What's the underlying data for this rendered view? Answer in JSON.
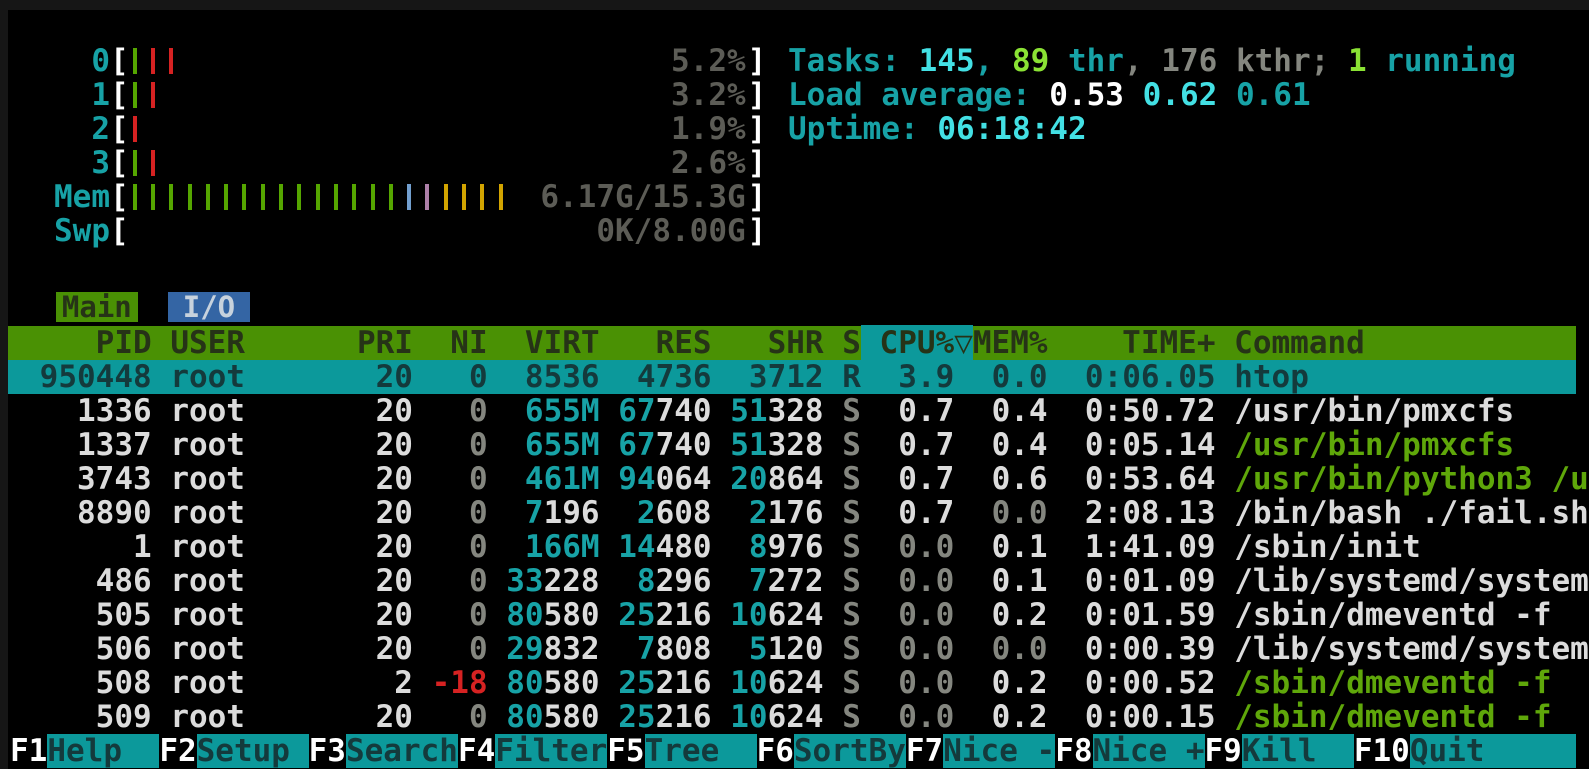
{
  "meters": {
    "cpus": [
      {
        "label": "0",
        "value": "5.2%",
        "ticks": [
          "green",
          "red",
          "red"
        ]
      },
      {
        "label": "1",
        "value": "3.2%",
        "ticks": [
          "green",
          "red"
        ]
      },
      {
        "label": "2",
        "value": "1.9%",
        "ticks": [
          "red"
        ]
      },
      {
        "label": "3",
        "value": "2.6%",
        "ticks": [
          "green",
          "red"
        ]
      }
    ],
    "mem": {
      "label": "Mem",
      "value": "6.17G/15.3G",
      "ticks": [
        "green",
        "green",
        "green",
        "green",
        "green",
        "green",
        "green",
        "green",
        "green",
        "green",
        "green",
        "green",
        "green",
        "green",
        "green",
        "blue",
        "purple",
        "yellow",
        "yellow",
        "yellow",
        "yellow"
      ]
    },
    "swp": {
      "label": "Swp",
      "value": "0K/8.00G",
      "ticks": []
    }
  },
  "info": {
    "tasks": [
      {
        "t": "Tasks: ",
        "c": "teal"
      },
      {
        "t": "145",
        "c": "cb"
      },
      {
        "t": ", ",
        "c": "teal"
      },
      {
        "t": "89",
        "c": "gb"
      },
      {
        "t": " thr",
        "c": "teal"
      },
      {
        "t": ", ",
        "c": "dim"
      },
      {
        "t": "176 kthr",
        "c": "dim"
      },
      {
        "t": "; ",
        "c": "dim"
      },
      {
        "t": "1",
        "c": "gb"
      },
      {
        "t": " running",
        "c": "teal"
      }
    ],
    "load": [
      {
        "t": "Load average: ",
        "c": "teal"
      },
      {
        "t": "0.53 ",
        "c": "wb"
      },
      {
        "t": "0.62 ",
        "c": "cb"
      },
      {
        "t": "0.61",
        "c": "teal"
      }
    ],
    "uptime": [
      {
        "t": "Uptime: ",
        "c": "teal"
      },
      {
        "t": "06:18:42",
        "c": "cb"
      }
    ]
  },
  "tabs": [
    {
      "label": "Main",
      "active": true
    },
    {
      "label": "I/O",
      "active": false
    }
  ],
  "table": {
    "columns": {
      "pid": "PID",
      "user": "USER",
      "pri": "PRI",
      "ni": "NI",
      "virt": "VIRT",
      "res": "RES",
      "shr": "SHR",
      "state": "S",
      "cpu": "CPU%",
      "mem": "MEM%",
      "time": "TIME+",
      "command": "Command"
    },
    "sort_column": "cpu",
    "sort_arrow": "▽",
    "rows": [
      {
        "pid": "950448",
        "user": "root",
        "pri": "20",
        "ni": "0",
        "virt": "8536",
        "res": "4736",
        "shr": "3712",
        "state": "R",
        "cpu": "3.9",
        "mem": "0.0",
        "time": "0:06.05",
        "command": "htop",
        "selected": true,
        "command_green": false
      },
      {
        "pid": "1336",
        "user": "root",
        "pri": "20",
        "ni": "0",
        "virt": "655M",
        "res": "67740",
        "shr": "51328",
        "state": "S",
        "cpu": "0.7",
        "mem": "0.4",
        "time": "0:50.72",
        "command": "/usr/bin/pmxcfs",
        "selected": false,
        "command_green": false
      },
      {
        "pid": "1337",
        "user": "root",
        "pri": "20",
        "ni": "0",
        "virt": "655M",
        "res": "67740",
        "shr": "51328",
        "state": "S",
        "cpu": "0.7",
        "mem": "0.4",
        "time": "0:05.14",
        "command": "/usr/bin/pmxcfs",
        "selected": false,
        "command_green": true
      },
      {
        "pid": "3743",
        "user": "root",
        "pri": "20",
        "ni": "0",
        "virt": "461M",
        "res": "94064",
        "shr": "20864",
        "state": "S",
        "cpu": "0.7",
        "mem": "0.6",
        "time": "0:53.64",
        "command": "/usr/bin/python3 /u",
        "selected": false,
        "command_green": true
      },
      {
        "pid": "8890",
        "user": "root",
        "pri": "20",
        "ni": "0",
        "virt": "7196",
        "res": "2608",
        "shr": "2176",
        "state": "S",
        "cpu": "0.7",
        "mem": "0.0",
        "time": "2:08.13",
        "command": "/bin/bash ./fail.sh",
        "selected": false,
        "command_green": false
      },
      {
        "pid": "1",
        "user": "root",
        "pri": "20",
        "ni": "0",
        "virt": "166M",
        "res": "14480",
        "shr": "8976",
        "state": "S",
        "cpu": "0.0",
        "mem": "0.1",
        "time": "1:41.09",
        "command": "/sbin/init",
        "selected": false,
        "command_green": false
      },
      {
        "pid": "486",
        "user": "root",
        "pri": "20",
        "ni": "0",
        "virt": "33228",
        "res": "8296",
        "shr": "7272",
        "state": "S",
        "cpu": "0.0",
        "mem": "0.1",
        "time": "0:01.09",
        "command": "/lib/systemd/system",
        "selected": false,
        "command_green": false
      },
      {
        "pid": "505",
        "user": "root",
        "pri": "20",
        "ni": "0",
        "virt": "80580",
        "res": "25216",
        "shr": "10624",
        "state": "S",
        "cpu": "0.0",
        "mem": "0.2",
        "time": "0:01.59",
        "command": "/sbin/dmeventd -f",
        "selected": false,
        "command_green": false
      },
      {
        "pid": "506",
        "user": "root",
        "pri": "20",
        "ni": "0",
        "virt": "29832",
        "res": "7808",
        "shr": "5120",
        "state": "S",
        "cpu": "0.0",
        "mem": "0.0",
        "time": "0:00.39",
        "command": "/lib/systemd/system",
        "selected": false,
        "command_green": false
      },
      {
        "pid": "508",
        "user": "root",
        "pri": "2",
        "ni": "-18",
        "virt": "80580",
        "res": "25216",
        "shr": "10624",
        "state": "S",
        "cpu": "0.0",
        "mem": "0.2",
        "time": "0:00.52",
        "command": "/sbin/dmeventd -f",
        "selected": false,
        "command_green": true
      },
      {
        "pid": "509",
        "user": "root",
        "pri": "20",
        "ni": "0",
        "virt": "80580",
        "res": "25216",
        "shr": "10624",
        "state": "S",
        "cpu": "0.0",
        "mem": "0.2",
        "time": "0:00.15",
        "command": "/sbin/dmeventd -f",
        "selected": false,
        "command_green": true
      }
    ]
  },
  "fkeys": [
    {
      "key": "F1",
      "label": "Help"
    },
    {
      "key": "F2",
      "label": "Setup"
    },
    {
      "key": "F3",
      "label": "Search"
    },
    {
      "key": "F4",
      "label": "Filter"
    },
    {
      "key": "F5",
      "label": "Tree"
    },
    {
      "key": "F6",
      "label": "SortBy"
    },
    {
      "key": "F7",
      "label": "Nice -"
    },
    {
      "key": "F8",
      "label": "Nice +"
    },
    {
      "key": "F9",
      "label": "Kill"
    },
    {
      "key": "F10",
      "label": "Quit"
    }
  ],
  "colors": {
    "frame": "#161616",
    "bg": "#000000",
    "text": "#dcdcdc",
    "bright": "#ffffff",
    "dim": "#84867f",
    "teal": "#17a2a6",
    "cyan_bright": "#43e0e4",
    "green_bright": "#8ae234",
    "command_green": "#5fa70a",
    "bar_green": "#55a600",
    "bar_red": "#d62222",
    "bar_blue": "#729fcf",
    "bar_purple": "#ad7fa8",
    "bar_yellow": "#d2a400",
    "meter_value": "#5c5c56",
    "header_bg": "#4a9104",
    "select_bg": "#0c999b",
    "fbar_bg": "#0c999b",
    "tab_inactive_bg": "#3465a4",
    "tab_inactive_text": "#c7d2dd",
    "on_green": "#263317",
    "on_teal": "#143a3c"
  }
}
